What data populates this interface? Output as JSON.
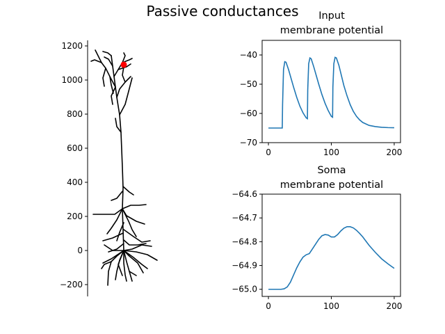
{
  "figure": {
    "title": "Passive conductances"
  },
  "chart_data": [
    {
      "type": "scatter",
      "panel": "morphology",
      "description": "neuron reconstruction",
      "ylim": [
        -250,
        1200
      ],
      "yticks": [
        -200,
        0,
        200,
        400,
        600,
        800,
        1000,
        1200
      ],
      "xticks": [],
      "marker": {
        "x": 0,
        "y": 1090,
        "color": "#ff0000"
      },
      "line_color": "#000000"
    },
    {
      "type": "line",
      "title_line1": "Input",
      "title_line2": "membrane potential",
      "xlim": [
        -10,
        210
      ],
      "ylim": [
        -70,
        -35
      ],
      "xticks": [
        0,
        100,
        200
      ],
      "yticks": [
        -70,
        -60,
        -50,
        -40
      ],
      "color": "#1f77b4",
      "series": [
        {
          "x": [
            0,
            22,
            22.5,
            24,
            26,
            28,
            32,
            36,
            40,
            45,
            50,
            55,
            60,
            62,
            62.5,
            64,
            66,
            68,
            72,
            76,
            80,
            85,
            90,
            95,
            100,
            102,
            102.5,
            104,
            106,
            108,
            112,
            116,
            120,
            125,
            130,
            135,
            140,
            145,
            150,
            160,
            170,
            180,
            190,
            200
          ],
          "y": [
            -65,
            -65,
            -57,
            -45,
            -42.3,
            -42.5,
            -45,
            -48,
            -51,
            -54.5,
            -57.5,
            -59.8,
            -61.5,
            -61.8,
            -52,
            -43,
            -41,
            -41.3,
            -44,
            -47,
            -50,
            -53.5,
            -56.5,
            -59,
            -61,
            -61.3,
            -51,
            -43,
            -40.8,
            -41,
            -43.5,
            -47,
            -50.5,
            -54,
            -57,
            -59.3,
            -61,
            -62.2,
            -63.1,
            -64.1,
            -64.5,
            -64.75,
            -64.85,
            -64.9
          ]
        }
      ]
    },
    {
      "type": "line",
      "title_line1": "Soma",
      "title_line2": "membrane potential",
      "xlim": [
        -10,
        210
      ],
      "ylim": [
        -65.03,
        -64.6
      ],
      "xticks": [
        0,
        100,
        200
      ],
      "yticks": [
        -65.0,
        -64.9,
        -64.8,
        -64.7,
        -64.6
      ],
      "ytick_labels": [
        "−65.0",
        "−64.9",
        "−64.8",
        "−64.7",
        "−64.6"
      ],
      "color": "#1f77b4",
      "series": [
        {
          "x": [
            0,
            10,
            20,
            25,
            30,
            35,
            40,
            45,
            50,
            55,
            60,
            65,
            70,
            75,
            80,
            85,
            90,
            95,
            100,
            105,
            110,
            115,
            120,
            125,
            130,
            135,
            140,
            145,
            150,
            160,
            170,
            180,
            190,
            200
          ],
          "y": [
            -65,
            -65,
            -65,
            -64.998,
            -64.99,
            -64.97,
            -64.94,
            -64.91,
            -64.885,
            -64.865,
            -64.855,
            -64.85,
            -64.83,
            -64.81,
            -64.79,
            -64.775,
            -64.77,
            -64.772,
            -64.78,
            -64.78,
            -64.77,
            -64.755,
            -64.743,
            -64.737,
            -64.737,
            -64.742,
            -64.752,
            -64.765,
            -64.78,
            -64.815,
            -64.845,
            -64.872,
            -64.893,
            -64.912
          ]
        }
      ]
    }
  ]
}
